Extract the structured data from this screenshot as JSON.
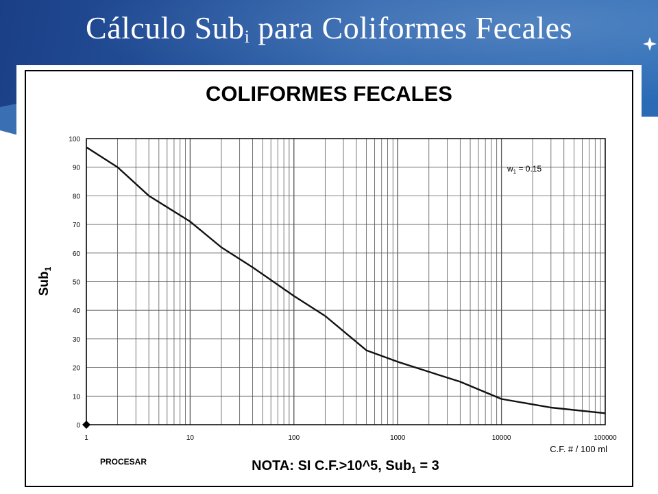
{
  "slide": {
    "title_main": "Cálculo Sub",
    "title_subscript": "i",
    "title_rest": " para Coliformes Fecales"
  },
  "colors": {
    "banner": "#2a62ad",
    "curve": "#111111",
    "grid": "#555555",
    "frame": "#000000"
  },
  "icons": {
    "star": "four-point-star-icon"
  },
  "chart_data": {
    "type": "line",
    "title": "COLIFORMES FECALES",
    "ylabel_main": "Sub",
    "ylabel_sub": "1",
    "xlabel": "C.F. # / 100 ml",
    "x_scale": "log",
    "xlim": [
      1,
      100000
    ],
    "ylim": [
      0,
      100
    ],
    "x_tick_labels": [
      "1",
      "10",
      "100",
      "1000",
      "10000",
      "100000"
    ],
    "y_tick_labels": [
      "0",
      "10",
      "20",
      "30",
      "40",
      "50",
      "60",
      "70",
      "80",
      "90",
      "100"
    ],
    "grid": true,
    "annotation_main": "w",
    "annotation_sub": "1",
    "annotation_rest": " = 0.15",
    "annotation_position": "top-right",
    "button_label": "PROCESAR",
    "note_main": "NOTA: SI C.F.>10^5, Sub",
    "note_sub": "1",
    "note_rest": " = 3",
    "series": [
      {
        "x": [
          1,
          2,
          4,
          10,
          20,
          40,
          100,
          200,
          500,
          1000,
          2000,
          4000,
          10000,
          30000,
          100000
        ],
        "y": [
          97,
          90,
          80,
          71,
          62,
          55,
          45,
          38,
          26,
          22,
          18.5,
          15,
          9,
          6,
          4
        ]
      }
    ],
    "marker": {
      "x": 1,
      "y": 0,
      "shape": "diamond"
    }
  }
}
